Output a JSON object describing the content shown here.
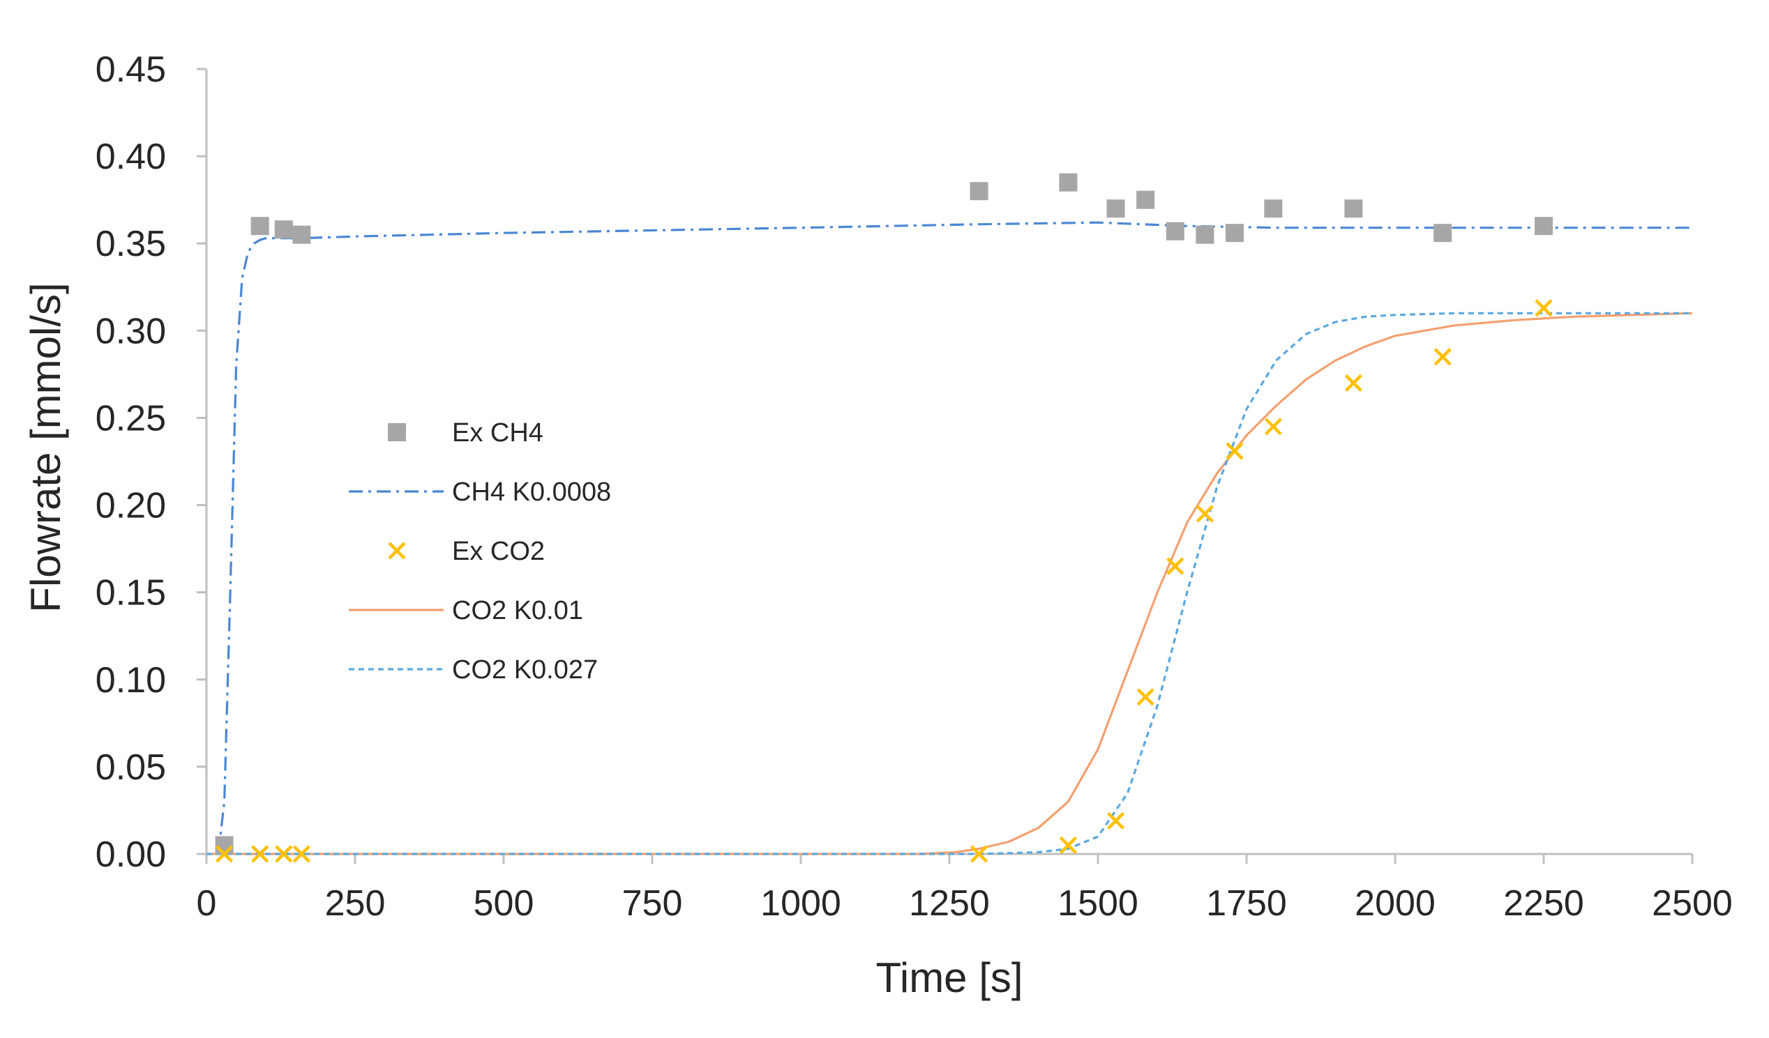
{
  "chart_data": {
    "type": "scatter",
    "xlabel": "Time [s]",
    "ylabel": "Flowrate [mmol/s]",
    "xlim": [
      0,
      2500
    ],
    "ylim": [
      0,
      0.45
    ],
    "x_ticks": [
      0,
      250,
      500,
      750,
      1000,
      1250,
      1500,
      1750,
      2000,
      2250,
      2500
    ],
    "y_ticks": [
      0.0,
      0.05,
      0.1,
      0.15,
      0.2,
      0.25,
      0.3,
      0.35,
      0.4,
      0.45
    ],
    "x_tick_labels": [
      "0",
      "250",
      "500",
      "750",
      "1000",
      "1250",
      "1500",
      "1750",
      "2000",
      "2250",
      "2500"
    ],
    "y_tick_labels": [
      "0.00",
      "0.05",
      "0.10",
      "0.15",
      "0.20",
      "0.25",
      "0.30",
      "0.35",
      "0.40",
      "0.45"
    ],
    "grid": false,
    "legend_position": "left-center",
    "series": [
      {
        "name": "Ex CH4",
        "kind": "scatter",
        "marker": "square",
        "color": "#A6A6A6",
        "x": [
          30,
          90,
          130,
          160,
          1300,
          1450,
          1530,
          1580,
          1630,
          1680,
          1730,
          1795,
          1930,
          2080,
          2250
        ],
        "y": [
          0.005,
          0.36,
          0.358,
          0.355,
          0.38,
          0.385,
          0.37,
          0.375,
          0.357,
          0.355,
          0.356,
          0.37,
          0.37,
          0.356,
          0.36
        ]
      },
      {
        "name": "CH4 K0.0008",
        "kind": "line",
        "dash": "dash-dot",
        "color": "#4A86D4",
        "x": [
          20,
          30,
          40,
          50,
          60,
          70,
          80,
          90,
          100,
          120,
          160,
          250,
          500,
          1000,
          1300,
          1500,
          1650,
          1800,
          2000,
          2250,
          2500
        ],
        "y": [
          0.0,
          0.03,
          0.15,
          0.28,
          0.33,
          0.345,
          0.35,
          0.352,
          0.353,
          0.353,
          0.353,
          0.354,
          0.356,
          0.359,
          0.361,
          0.362,
          0.36,
          0.359,
          0.359,
          0.359,
          0.359
        ]
      },
      {
        "name": "Ex CO2",
        "kind": "scatter",
        "marker": "x",
        "color": "#FFC000",
        "x": [
          30,
          90,
          130,
          160,
          1300,
          1450,
          1530,
          1580,
          1630,
          1680,
          1730,
          1795,
          1930,
          2080,
          2250
        ],
        "y": [
          0.0,
          0.0,
          0.0,
          0.0,
          0.0,
          0.005,
          0.019,
          0.09,
          0.165,
          0.195,
          0.231,
          0.245,
          0.27,
          0.285,
          0.313
        ]
      },
      {
        "name": "CO2 K0.01",
        "kind": "line",
        "dash": "solid",
        "color": "#F4A070",
        "x": [
          0,
          1200,
          1260,
          1300,
          1350,
          1400,
          1450,
          1500,
          1550,
          1600,
          1650,
          1700,
          1750,
          1800,
          1850,
          1900,
          1950,
          2000,
          2100,
          2200,
          2300,
          2400,
          2500
        ],
        "y": [
          0.0,
          0.0,
          0.001,
          0.003,
          0.007,
          0.015,
          0.03,
          0.06,
          0.105,
          0.15,
          0.19,
          0.218,
          0.24,
          0.257,
          0.272,
          0.283,
          0.291,
          0.297,
          0.303,
          0.306,
          0.308,
          0.309,
          0.31
        ]
      },
      {
        "name": "CO2 K0.027",
        "kind": "line",
        "dash": "dotted",
        "color": "#5AA8E0",
        "x": [
          0,
          1300,
          1400,
          1450,
          1500,
          1550,
          1600,
          1650,
          1700,
          1750,
          1800,
          1850,
          1900,
          1950,
          2000,
          2100,
          2200,
          2300,
          2500
        ],
        "y": [
          0.0,
          0.0,
          0.001,
          0.003,
          0.01,
          0.035,
          0.085,
          0.15,
          0.21,
          0.255,
          0.283,
          0.298,
          0.305,
          0.308,
          0.309,
          0.31,
          0.31,
          0.31,
          0.31
        ]
      }
    ]
  }
}
